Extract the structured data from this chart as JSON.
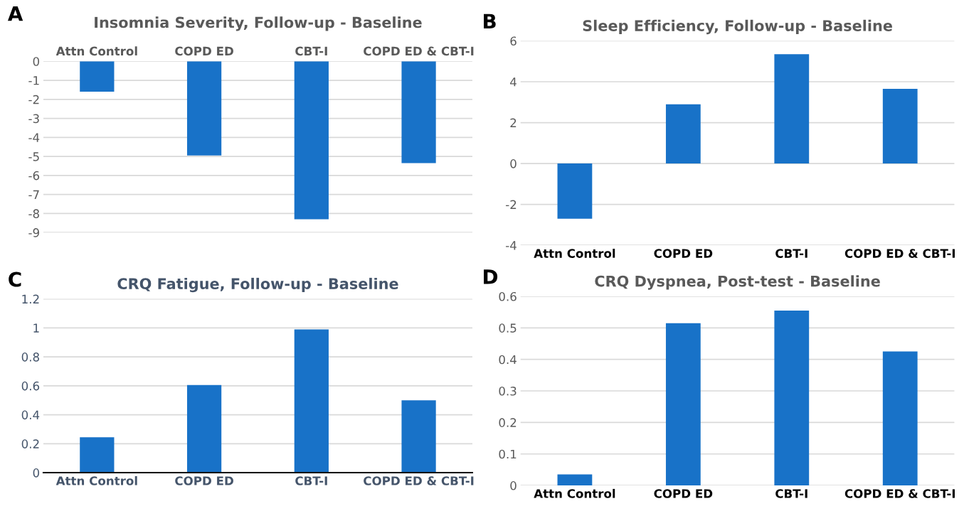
{
  "chart_data": [
    {
      "type": "bar",
      "title": "Insomnia Severity, Follow-up - Baseline",
      "annotations": [
        "A"
      ],
      "categories": [
        "Attn Control",
        "COPD ED",
        "CBT-I",
        "COPD ED & CBT-I"
      ],
      "values": [
        -1.6,
        -4.95,
        -8.3,
        -5.35
      ],
      "color": "#1872c8",
      "ylim": [
        -9,
        0
      ],
      "yticks": [
        0,
        -1,
        -2,
        -3,
        -4,
        -5,
        -6,
        -7,
        -8,
        -9
      ],
      "grid": "y"
    },
    {
      "type": "bar",
      "title": "Sleep Efficiency, Follow-up - Baseline",
      "annotations": [
        "B"
      ],
      "categories": [
        "Attn Control",
        "COPD ED",
        "CBT-I",
        "COPD ED & CBT-I"
      ],
      "values": [
        -2.7,
        2.9,
        5.35,
        3.65
      ],
      "color": "#1872c8",
      "ylim": [
        -4,
        6
      ],
      "yticks": [
        -4,
        -2,
        0,
        2,
        4,
        6
      ],
      "grid": "y"
    },
    {
      "type": "bar",
      "title": "CRQ Fatigue, Follow-up - Baseline",
      "annotations": [
        "C"
      ],
      "categories": [
        "Attn Control",
        "COPD ED",
        "CBT-I",
        "COPD ED & CBT-I"
      ],
      "values": [
        0.245,
        0.605,
        0.99,
        0.5
      ],
      "color": "#1872c8",
      "ylim": [
        0,
        1.2
      ],
      "yticks": [
        0,
        0.2,
        0.4,
        0.6,
        0.8,
        1,
        1.2
      ],
      "grid": "y"
    },
    {
      "type": "bar",
      "title": "CRQ Dyspnea, Post-test - Baseline",
      "annotations": [
        "D"
      ],
      "categories": [
        "Attn Control",
        "COPD ED",
        "CBT-I",
        "COPD ED & CBT-I"
      ],
      "values": [
        0.035,
        0.515,
        0.555,
        0.425
      ],
      "color": "#1872c8",
      "ylim": [
        0,
        0.6
      ],
      "yticks": [
        0,
        0.1,
        0.2,
        0.3,
        0.4,
        0.5,
        0.6
      ],
      "grid": "y"
    }
  ]
}
